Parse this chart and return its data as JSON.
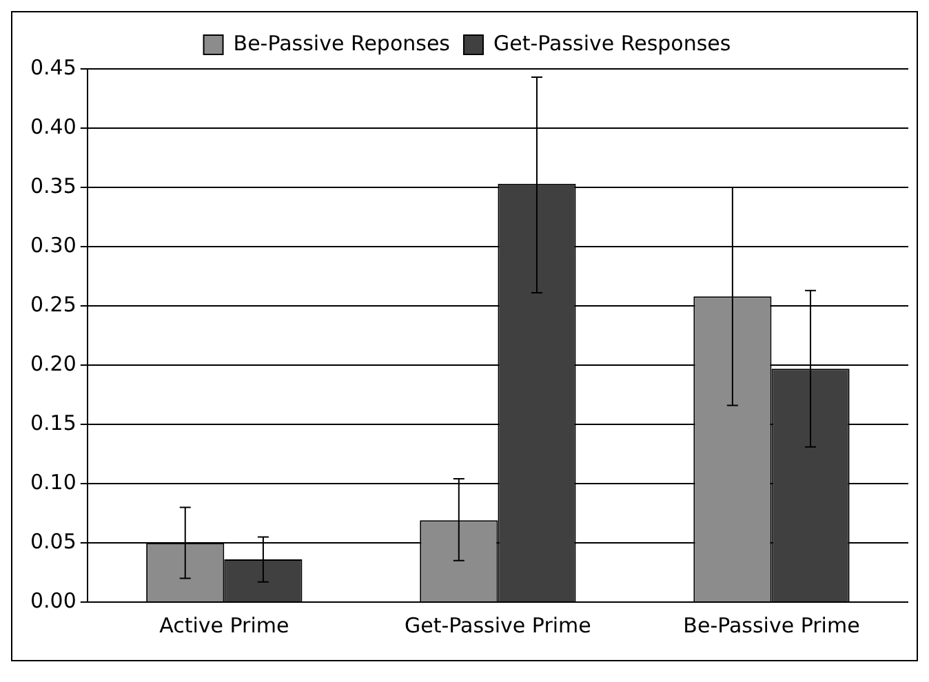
{
  "chart_data": {
    "type": "bar",
    "categories": [
      "Active Prime",
      "Get-Passive Prime",
      "Be-Passive Prime"
    ],
    "series": [
      {
        "name": "Be-Passive Reponses",
        "color": "#8c8c8c",
        "values": [
          0.05,
          0.069,
          0.258
        ],
        "errors": [
          [
            0.02,
            0.08
          ],
          [
            0.035,
            0.104
          ],
          [
            0.166,
            0.35
          ]
        ]
      },
      {
        "name": "Get-Passive Responses",
        "color": "#404040",
        "values": [
          0.036,
          0.353,
          0.197
        ],
        "errors": [
          [
            0.017,
            0.055
          ],
          [
            0.261,
            0.443
          ],
          [
            0.131,
            0.263
          ]
        ]
      }
    ],
    "ylim": [
      0,
      0.45
    ],
    "yticks": [
      {
        "value": 0,
        "label": "0.00"
      },
      {
        "value": 0.05,
        "label": "0.05"
      },
      {
        "value": 0.1,
        "label": "0.10"
      },
      {
        "value": 0.15,
        "label": "0.15"
      },
      {
        "value": 0.2,
        "label": "0.20"
      },
      {
        "value": 0.25,
        "label": "0.25"
      },
      {
        "value": 0.3,
        "label": "0.30"
      },
      {
        "value": 0.35,
        "label": "0.35"
      },
      {
        "value": 0.4,
        "label": "0.40"
      },
      {
        "value": 0.45,
        "label": "0.45"
      }
    ],
    "grid": "y",
    "legend": "top"
  }
}
